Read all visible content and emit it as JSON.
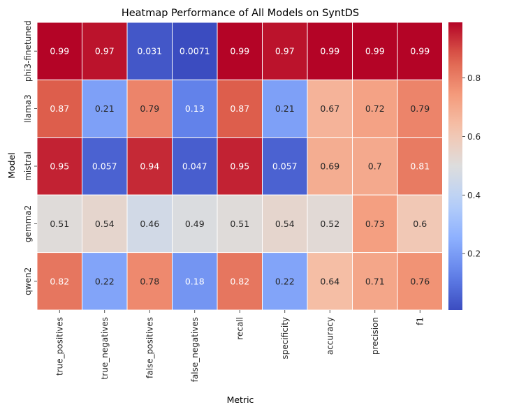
{
  "chart_data": {
    "type": "heatmap",
    "title": "Heatmap Performance of All Models on SyntDS",
    "xlabel": "Metric",
    "ylabel": "Model",
    "columns": [
      "true_positives",
      "true_negatives",
      "false_positives",
      "false_negatives",
      "recall",
      "specificity",
      "accuracy",
      "precision",
      "f1"
    ],
    "rows": [
      "phi3-finetuned",
      "llama3",
      "mistral",
      "gemma2",
      "qwen2"
    ],
    "values": [
      [
        0.99,
        0.97,
        0.031,
        0.0071,
        0.99,
        0.97,
        0.99,
        0.99,
        0.99
      ],
      [
        0.87,
        0.21,
        0.79,
        0.13,
        0.87,
        0.21,
        0.67,
        0.72,
        0.79
      ],
      [
        0.95,
        0.057,
        0.94,
        0.047,
        0.95,
        0.057,
        0.69,
        0.7,
        0.81
      ],
      [
        0.51,
        0.54,
        0.46,
        0.49,
        0.51,
        0.54,
        0.52,
        0.73,
        0.6
      ],
      [
        0.82,
        0.22,
        0.78,
        0.18,
        0.82,
        0.22,
        0.64,
        0.71,
        0.76
      ]
    ],
    "colormap": "coolwarm",
    "vmin": 0.0071,
    "vmax": 0.99,
    "colorbar_ticks": [
      0.2,
      0.4,
      0.6,
      0.8
    ]
  }
}
